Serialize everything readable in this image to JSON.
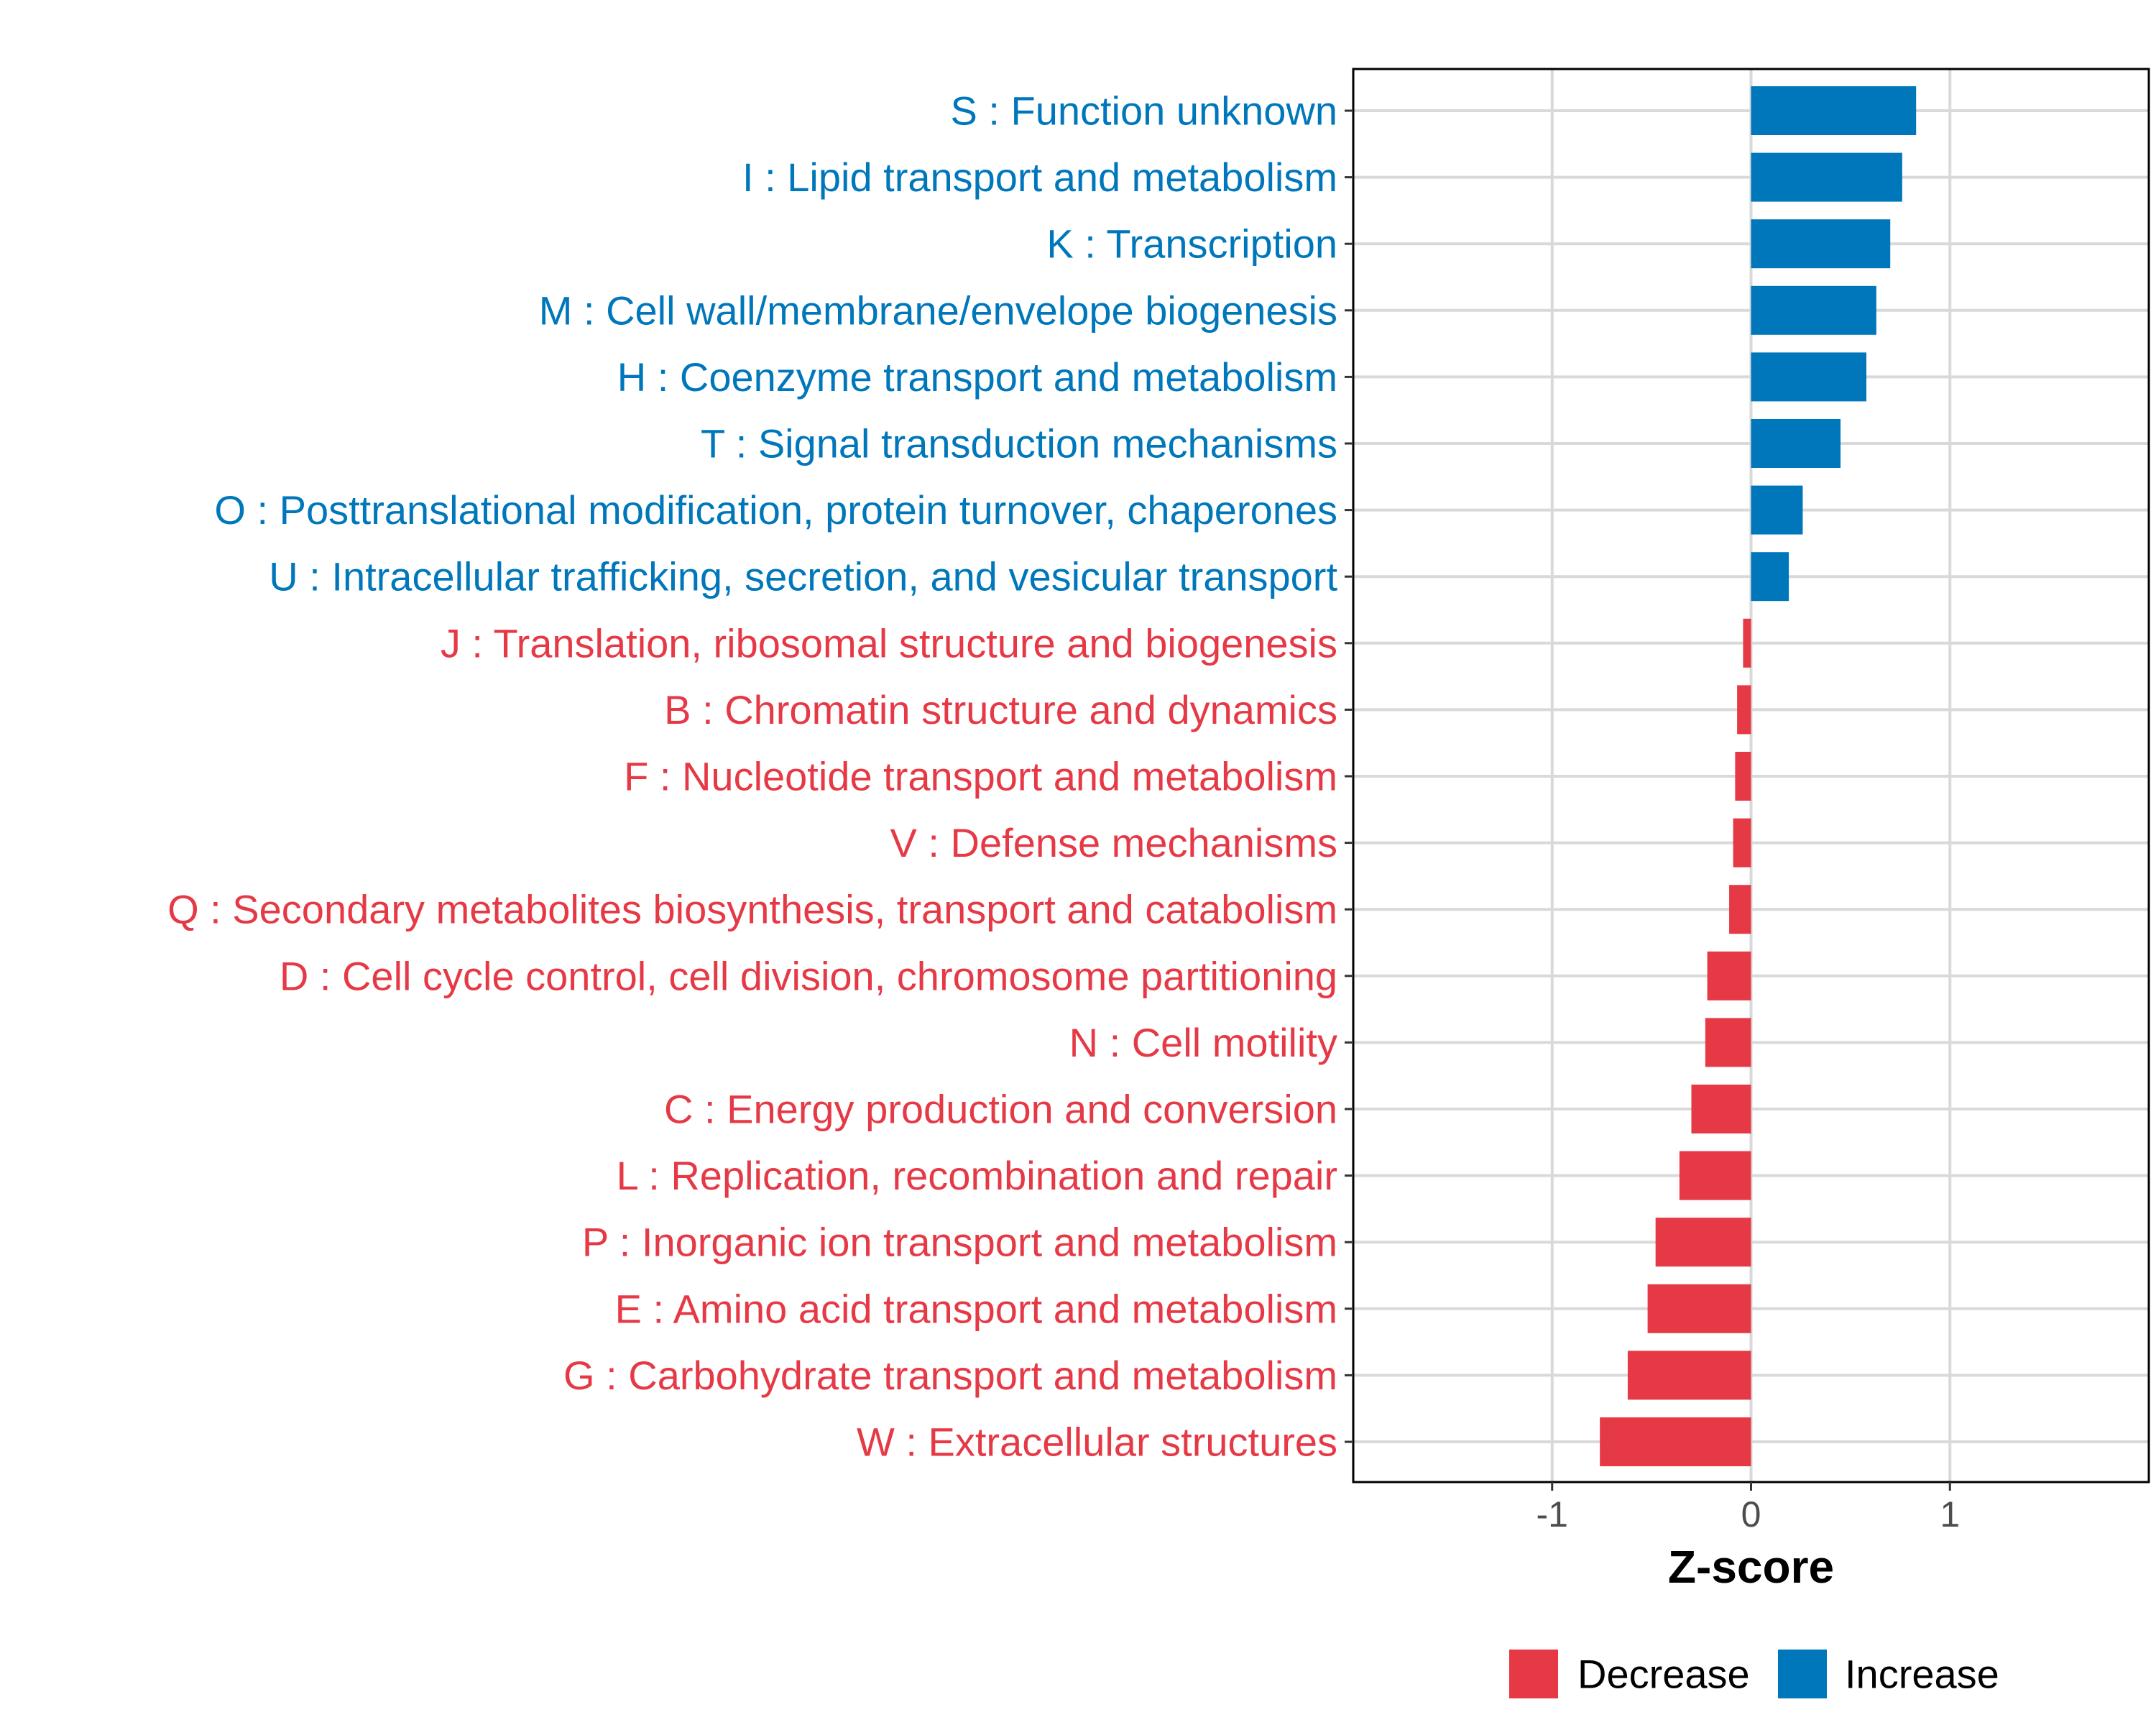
{
  "chart_data": {
    "type": "bar",
    "orientation": "horizontal",
    "title": "",
    "xlabel": "Z-score",
    "ylabel": "",
    "xlim": [
      -2.0,
      2.0
    ],
    "xticks": [
      -1,
      0,
      1
    ],
    "xtick_labels": [
      "-1",
      "0",
      "1"
    ],
    "grid": true,
    "legend_position": "bottom",
    "colors": {
      "Decrease": "#e63946",
      "Increase": "#0077bb"
    },
    "legend": [
      {
        "label": "Decrease",
        "color": "#e63946"
      },
      {
        "label": "Increase",
        "color": "#0077bb"
      }
    ],
    "categories": [
      "S : Function unknown",
      "I : Lipid transport and metabolism",
      "K : Transcription",
      "M : Cell wall/membrane/envelope biogenesis",
      "H : Coenzyme transport and metabolism",
      "T : Signal transduction mechanisms",
      "O : Posttranslational modification, protein turnover, chaperones",
      "U : Intracellular trafficking, secretion, and vesicular transport",
      "J : Translation, ribosomal structure and biogenesis",
      "B : Chromatin structure and dynamics",
      "F : Nucleotide transport and metabolism",
      "V : Defense mechanisms",
      "Q : Secondary metabolites biosynthesis, transport and catabolism",
      "D : Cell cycle control, cell division, chromosome partitioning",
      "N : Cell motility",
      "C : Energy production and conversion",
      "L : Replication, recombination and repair",
      "P : Inorganic ion transport and metabolism",
      "E : Amino acid transport and metabolism",
      "G : Carbohydrate transport and metabolism",
      "W : Extracellular structures"
    ],
    "values": [
      0.83,
      0.76,
      0.7,
      0.63,
      0.58,
      0.45,
      0.26,
      0.19,
      -0.04,
      -0.07,
      -0.08,
      -0.09,
      -0.11,
      -0.22,
      -0.23,
      -0.3,
      -0.36,
      -0.48,
      -0.52,
      -0.62,
      -0.76
    ],
    "groups": [
      "Increase",
      "Increase",
      "Increase",
      "Increase",
      "Increase",
      "Increase",
      "Increase",
      "Increase",
      "Decrease",
      "Decrease",
      "Decrease",
      "Decrease",
      "Decrease",
      "Decrease",
      "Decrease",
      "Decrease",
      "Decrease",
      "Decrease",
      "Decrease",
      "Decrease",
      "Decrease"
    ]
  }
}
